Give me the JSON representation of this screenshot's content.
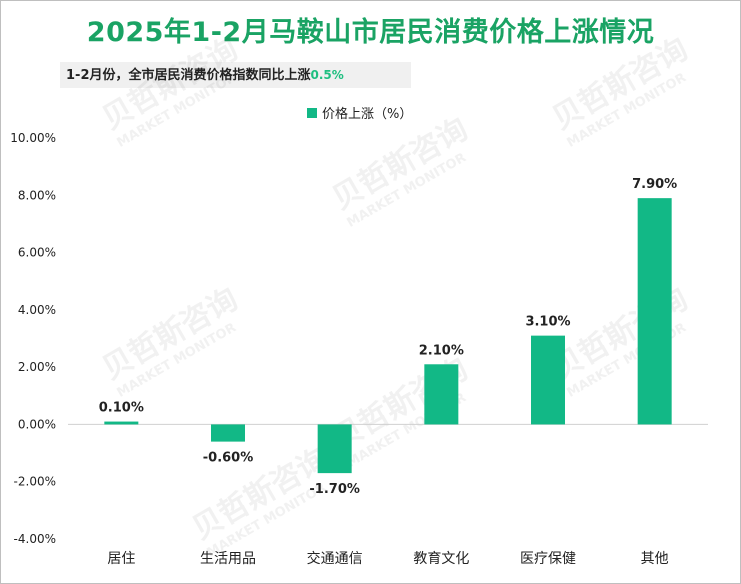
{
  "title": "2025年1-2月马鞍山市居民消费价格上涨情况",
  "subtitle": {
    "text": "1-2月份，全市居民消费价格指数同比上涨",
    "highlight": "0.5%"
  },
  "watermark": {
    "cn": "贝哲斯咨询",
    "en": "MARKET MONITOR"
  },
  "colors": {
    "bar": "#12b886",
    "title": "#1aa364",
    "accent": "#1fbf80"
  },
  "chart_data": {
    "type": "bar",
    "categories": [
      "居住",
      "生活用品",
      "交通通信",
      "教育文化",
      "医疗保健",
      "其他"
    ],
    "series": [
      {
        "name": "价格上涨（%）",
        "values": [
          0.1,
          -0.6,
          -1.7,
          2.1,
          3.1,
          7.9
        ]
      }
    ],
    "data_labels": [
      "0.10%",
      "-0.60%",
      "-1.70%",
      "2.10%",
      "3.10%",
      "7.90%"
    ],
    "yticks": [
      "10.00%",
      "8.00%",
      "6.00%",
      "4.00%",
      "2.00%",
      "0.00%",
      "-2.00%",
      "-4.00%"
    ],
    "ylim": [
      -4,
      10
    ],
    "legend_position": "top-center",
    "grid": false
  }
}
